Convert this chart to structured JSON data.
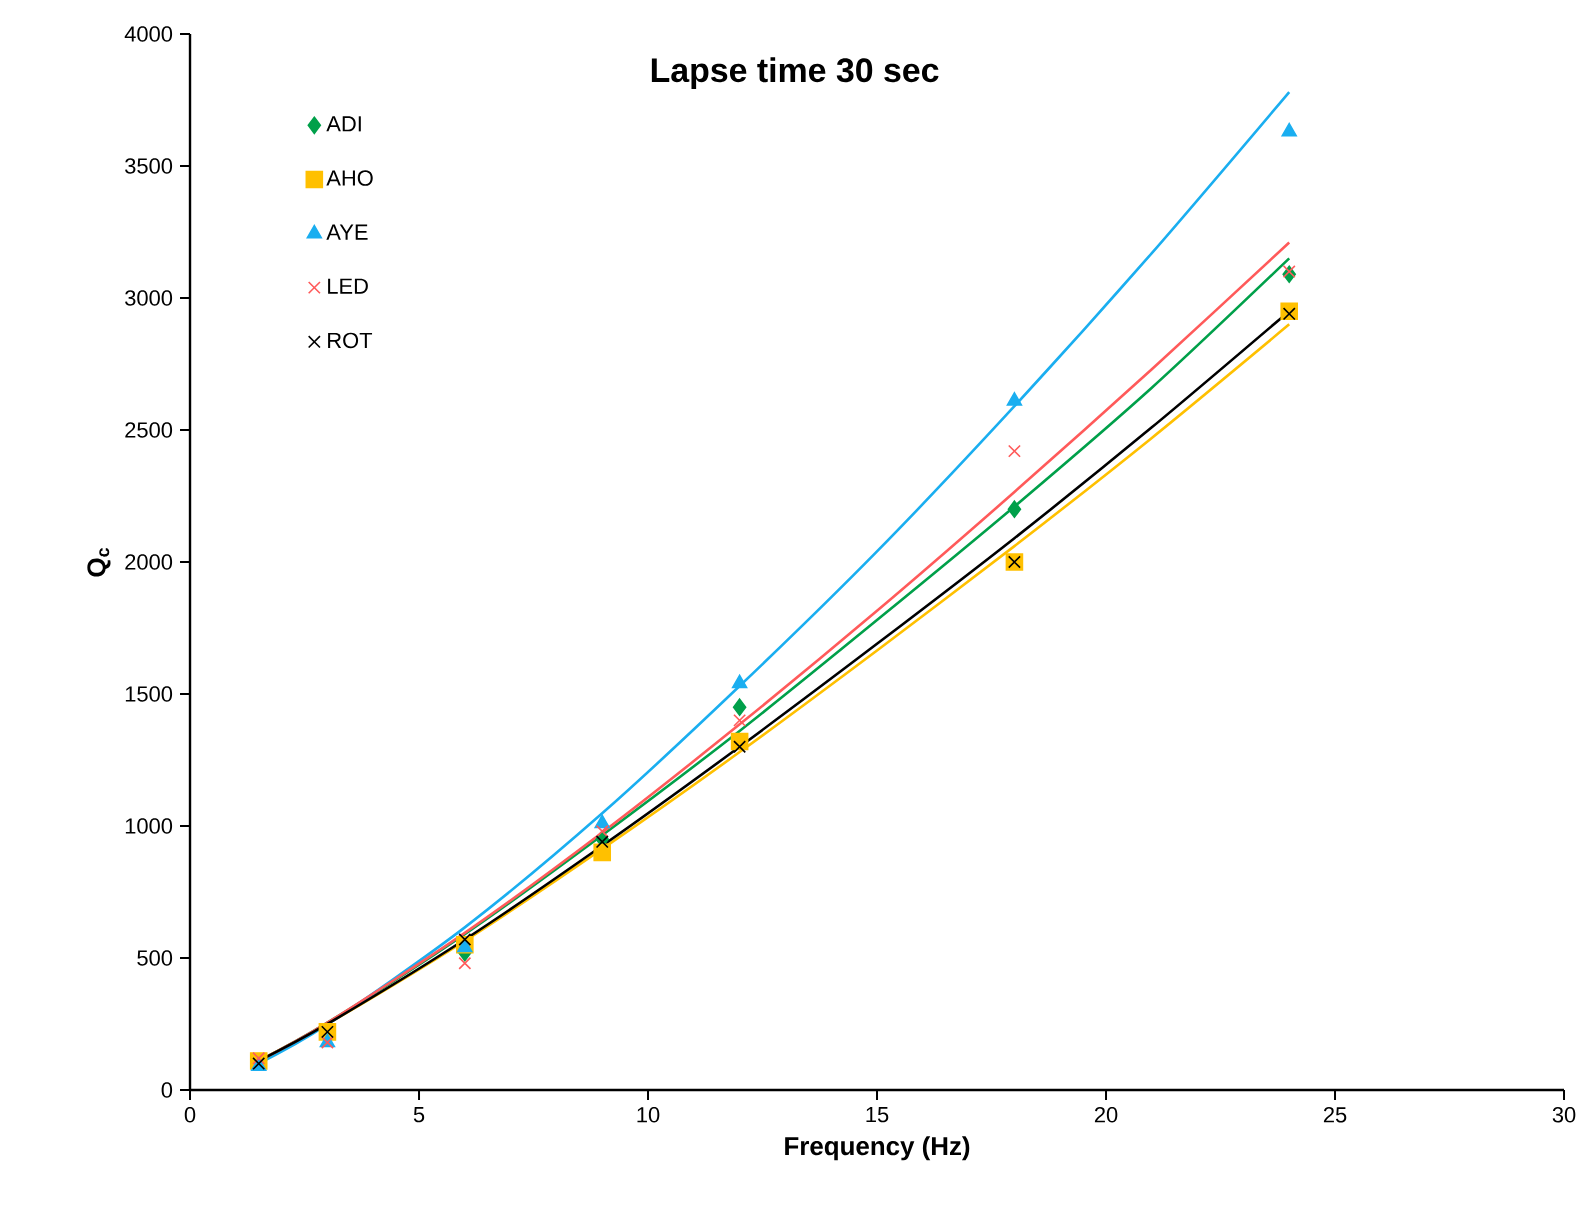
{
  "chart_data": {
    "type": "scatter",
    "title": "Lapse time 30 sec",
    "xlabel": "Frequency (Hz)",
    "ylabel": "Q$_{c}$",
    "xlim": [
      0,
      30
    ],
    "ylim": [
      0,
      4000
    ],
    "xticks": [
      0,
      5,
      10,
      15,
      20,
      25,
      30
    ],
    "yticks": [
      0,
      500,
      1000,
      1500,
      2000,
      2500,
      3000,
      3500,
      4000
    ],
    "grid": false,
    "legend": "top left",
    "series": [
      {
        "name": "ADI",
        "marker": "diamond",
        "color": "#00a04a",
        "x": [
          6,
          9,
          12,
          18,
          24
        ],
        "values": [
          520,
          950,
          1450,
          2200,
          3090
        ]
      },
      {
        "name": "AHO",
        "marker": "square",
        "color": "#ffc000",
        "x": [
          1.5,
          3,
          6,
          9,
          12,
          18,
          24
        ],
        "values": [
          110,
          220,
          550,
          900,
          1320,
          2000,
          2950
        ]
      },
      {
        "name": "AYE",
        "marker": "triangle",
        "color": "#1aaef0",
        "x": [
          1.5,
          3,
          6,
          9,
          12,
          18,
          24
        ],
        "values": [
          90,
          180,
          540,
          1010,
          1540,
          2610,
          3630
        ]
      },
      {
        "name": "LED",
        "marker": "cross",
        "color": "#ff5a5a",
        "x": [
          1.5,
          3,
          6,
          9,
          12,
          18,
          24
        ],
        "values": [
          120,
          180,
          480,
          980,
          1400,
          2420,
          3100
        ]
      },
      {
        "name": "ROT",
        "marker": "cross",
        "color": "#000000",
        "x": [
          1.5,
          3,
          6,
          9,
          12,
          18,
          24
        ],
        "values": [
          100,
          220,
          570,
          940,
          1300,
          2000,
          2940
        ]
      },
      {
        "type": "line",
        "line_style": "solid",
        "color": "#00a04a",
        "x": [
          1.5,
          3,
          6,
          9,
          12,
          15,
          18,
          21,
          24
        ],
        "values": [
          110,
          255,
          590,
          965,
          1360,
          1780,
          2210,
          2660,
          3150
        ]
      },
      {
        "type": "line",
        "line_style": "solid",
        "color": "#ffc000",
        "x": [
          1.5,
          3,
          6,
          9,
          12,
          15,
          18,
          21,
          24
        ],
        "values": [
          110,
          250,
          565,
          913,
          1280,
          1665,
          2060,
          2470,
          2900
        ]
      },
      {
        "type": "line",
        "line_style": "solid",
        "color": "#1aaef0",
        "x": [
          1.5,
          3,
          6,
          9,
          12,
          15,
          18,
          21,
          24
        ],
        "values": [
          100,
          248,
          616,
          1048,
          1530,
          2040,
          2590,
          3170,
          3780
        ]
      },
      {
        "type": "line",
        "line_style": "solid",
        "color": "#ff5a5a",
        "x": [
          1.5,
          3,
          6,
          9,
          12,
          15,
          18,
          21,
          24
        ],
        "values": [
          110,
          255,
          595,
          975,
          1385,
          1815,
          2265,
          2730,
          3210
        ]
      },
      {
        "type": "line",
        "line_style": "solid",
        "color": "#000000",
        "x": [
          1.5,
          3,
          6,
          9,
          12,
          15,
          18,
          21,
          24
        ],
        "values": [
          110,
          250,
          570,
          925,
          1300,
          1690,
          2090,
          2510,
          2950
        ]
      }
    ]
  }
}
